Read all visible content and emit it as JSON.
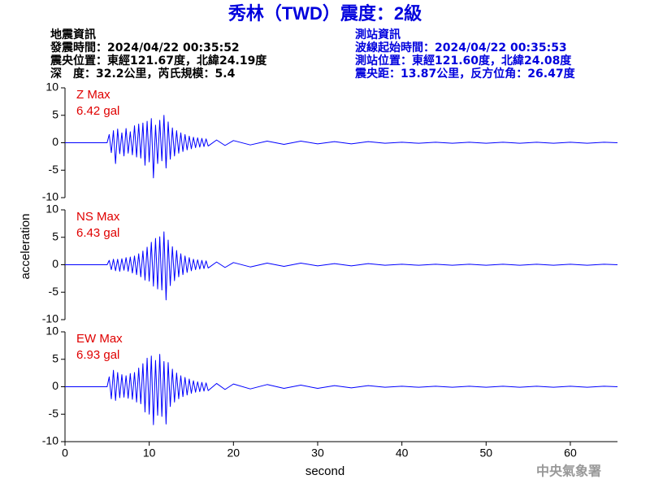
{
  "header": {
    "title": "秀林（TWD）震度：2級",
    "left": [
      "地震資訊",
      "發震時間：2024/04/22 00:35:52",
      "震央位置：東經121.67度，北緯24.19度",
      "深　度：32.2公里，芮氏規模：5.4"
    ],
    "right": [
      "測站資訊",
      "波線起始時間：2024/04/22 00:35:53",
      "測站位置：東經121.60度，北緯24.08度",
      "震央距：13.87公里，反方位角：26.47度"
    ]
  },
  "y_axis_label": "acceleration",
  "footer": "中央氣象署",
  "chart_data": [
    {
      "type": "line",
      "label": "Z Max",
      "peak": "6.42 gal",
      "color": "#0000ff",
      "label_color": "#e00000",
      "xlim": [
        0,
        65.6
      ],
      "ylim": [
        -10,
        10
      ],
      "yticks": [
        -10,
        -5,
        0,
        5,
        10
      ],
      "x": [
        0,
        5,
        5.25,
        5.5,
        5.75,
        6,
        6.25,
        6.5,
        6.75,
        7,
        7.25,
        7.5,
        7.75,
        8,
        8.25,
        8.5,
        8.75,
        9,
        9.25,
        9.5,
        9.75,
        10,
        10.25,
        10.5,
        10.75,
        11,
        11.25,
        11.5,
        11.75,
        12,
        12.25,
        12.5,
        12.75,
        13,
        13.25,
        13.5,
        13.75,
        14,
        14.25,
        14.5,
        14.75,
        15,
        15.25,
        15.5,
        15.75,
        16,
        16.25,
        16.5,
        16.75,
        17,
        18,
        19,
        20,
        22,
        24,
        26,
        28,
        30,
        32,
        34,
        36,
        38,
        40,
        42,
        44,
        46,
        48,
        50,
        52,
        54,
        56,
        58,
        60,
        62,
        64,
        65.6
      ],
      "values": [
        0,
        0,
        1.5,
        -1.8,
        2.2,
        -3.8,
        2.5,
        -2,
        1.8,
        -2.4,
        2.6,
        -1.9,
        2.0,
        -2.2,
        3.1,
        -2.6,
        3.4,
        -2.8,
        3.6,
        -4.1,
        3.9,
        -3.5,
        4.4,
        -6.4,
        3.2,
        -3.8,
        4.1,
        -3.3,
        5.0,
        -4.6,
        3.8,
        -3.0,
        2.7,
        -2.4,
        2.2,
        -1.9,
        1.8,
        -1.6,
        1.5,
        -1.3,
        1.2,
        -1.1,
        1.0,
        -0.9,
        0.9,
        -0.8,
        0.8,
        -0.7,
        0.7,
        -0.6,
        0.5,
        -0.5,
        0.4,
        -0.4,
        0.3,
        -0.3,
        0.3,
        -0.2,
        0.2,
        -0.2,
        0.2,
        -0.1,
        0.1,
        -0.1,
        0.1,
        -0.1,
        0.1,
        -0.1,
        0.1,
        -0.1,
        0.1,
        -0.1,
        0.1,
        -0.1,
        0.1,
        0
      ]
    },
    {
      "type": "line",
      "label": "NS Max",
      "peak": "6.43 gal",
      "color": "#0000ff",
      "label_color": "#e00000",
      "xlim": [
        0,
        65.6
      ],
      "ylim": [
        -10,
        10
      ],
      "yticks": [
        -10,
        -5,
        0,
        5,
        10
      ],
      "x": [
        0,
        5,
        5.25,
        5.5,
        5.75,
        6,
        6.25,
        6.5,
        6.75,
        7,
        7.25,
        7.5,
        7.75,
        8,
        8.25,
        8.5,
        8.75,
        9,
        9.25,
        9.5,
        9.75,
        10,
        10.25,
        10.5,
        10.75,
        11,
        11.25,
        11.5,
        11.75,
        12,
        12.25,
        12.5,
        12.75,
        13,
        13.25,
        13.5,
        13.75,
        14,
        14.25,
        14.5,
        14.75,
        15,
        15.25,
        15.5,
        15.75,
        16,
        16.25,
        16.5,
        16.75,
        17,
        18,
        19,
        20,
        22,
        24,
        26,
        28,
        30,
        32,
        34,
        36,
        38,
        40,
        42,
        44,
        46,
        48,
        50,
        52,
        54,
        56,
        58,
        60,
        62,
        64,
        65.6
      ],
      "values": [
        0,
        0,
        0.8,
        -0.9,
        1.0,
        -1.1,
        1.0,
        -1.2,
        1.1,
        -1.0,
        1.3,
        -1.2,
        1.4,
        -1.5,
        1.6,
        -1.8,
        2.0,
        -2.2,
        2.5,
        -2.8,
        3.2,
        -3.0,
        4.1,
        -3.9,
        4.8,
        -4.4,
        5.1,
        -4.6,
        6.0,
        -6.4,
        4.5,
        -3.8,
        3.3,
        -2.9,
        2.6,
        -2.2,
        2.0,
        -1.8,
        1.6,
        -1.4,
        1.3,
        -1.1,
        1.0,
        -0.9,
        0.9,
        -0.8,
        0.8,
        -0.7,
        0.7,
        -0.6,
        0.5,
        -0.5,
        0.4,
        -0.4,
        0.3,
        -0.3,
        0.3,
        -0.2,
        0.2,
        -0.2,
        0.2,
        -0.1,
        0.1,
        -0.1,
        0.1,
        -0.1,
        0.1,
        -0.1,
        0.1,
        -0.1,
        0.1,
        -0.1,
        0.1,
        -0.1,
        0.1,
        0
      ]
    },
    {
      "type": "line",
      "label": "EW Max",
      "peak": "6.93 gal",
      "color": "#0000ff",
      "label_color": "#e00000",
      "xlim": [
        0,
        65.6
      ],
      "ylim": [
        -10,
        10
      ],
      "yticks": [
        -10,
        -5,
        0,
        5,
        10
      ],
      "xticks": [
        0,
        10,
        20,
        30,
        40,
        50,
        60
      ],
      "x_label": "second",
      "x": [
        0,
        5,
        5.25,
        5.5,
        5.75,
        6,
        6.25,
        6.5,
        6.75,
        7,
        7.25,
        7.5,
        7.75,
        8,
        8.25,
        8.5,
        8.75,
        9,
        9.25,
        9.5,
        9.75,
        10,
        10.25,
        10.5,
        10.75,
        11,
        11.25,
        11.5,
        11.75,
        12,
        12.25,
        12.5,
        12.75,
        13,
        13.25,
        13.5,
        13.75,
        14,
        14.25,
        14.5,
        14.75,
        15,
        15.25,
        15.5,
        15.75,
        16,
        16.25,
        16.5,
        16.75,
        17,
        18,
        19,
        20,
        22,
        24,
        26,
        28,
        30,
        32,
        34,
        36,
        38,
        40,
        42,
        44,
        46,
        48,
        50,
        52,
        54,
        56,
        58,
        60,
        62,
        64,
        65.6
      ],
      "values": [
        0,
        0,
        1.8,
        -2.2,
        3.0,
        -2.5,
        2.6,
        -2.0,
        2.2,
        -1.9,
        2.0,
        -2.1,
        2.4,
        -2.3,
        2.6,
        -2.8,
        3.4,
        -3.1,
        4.2,
        -4.6,
        5.2,
        -5.0,
        5.6,
        -6.93,
        4.8,
        -5.2,
        5.9,
        -5.4,
        4.6,
        -6.8,
        4.4,
        -3.6,
        3.2,
        -2.8,
        2.5,
        -2.2,
        2.0,
        -1.8,
        1.7,
        -1.5,
        1.4,
        -1.2,
        1.1,
        -1.0,
        0.9,
        -0.9,
        0.8,
        -0.8,
        0.7,
        -0.7,
        0.6,
        -0.5,
        0.5,
        -0.4,
        0.4,
        -0.3,
        0.3,
        -0.3,
        0.2,
        -0.2,
        0.2,
        -0.1,
        0.1,
        -0.1,
        0.1,
        -0.1,
        0.1,
        -0.1,
        0.1,
        -0.1,
        0.1,
        -0.1,
        0.1,
        -0.1,
        0.1,
        0
      ]
    }
  ]
}
